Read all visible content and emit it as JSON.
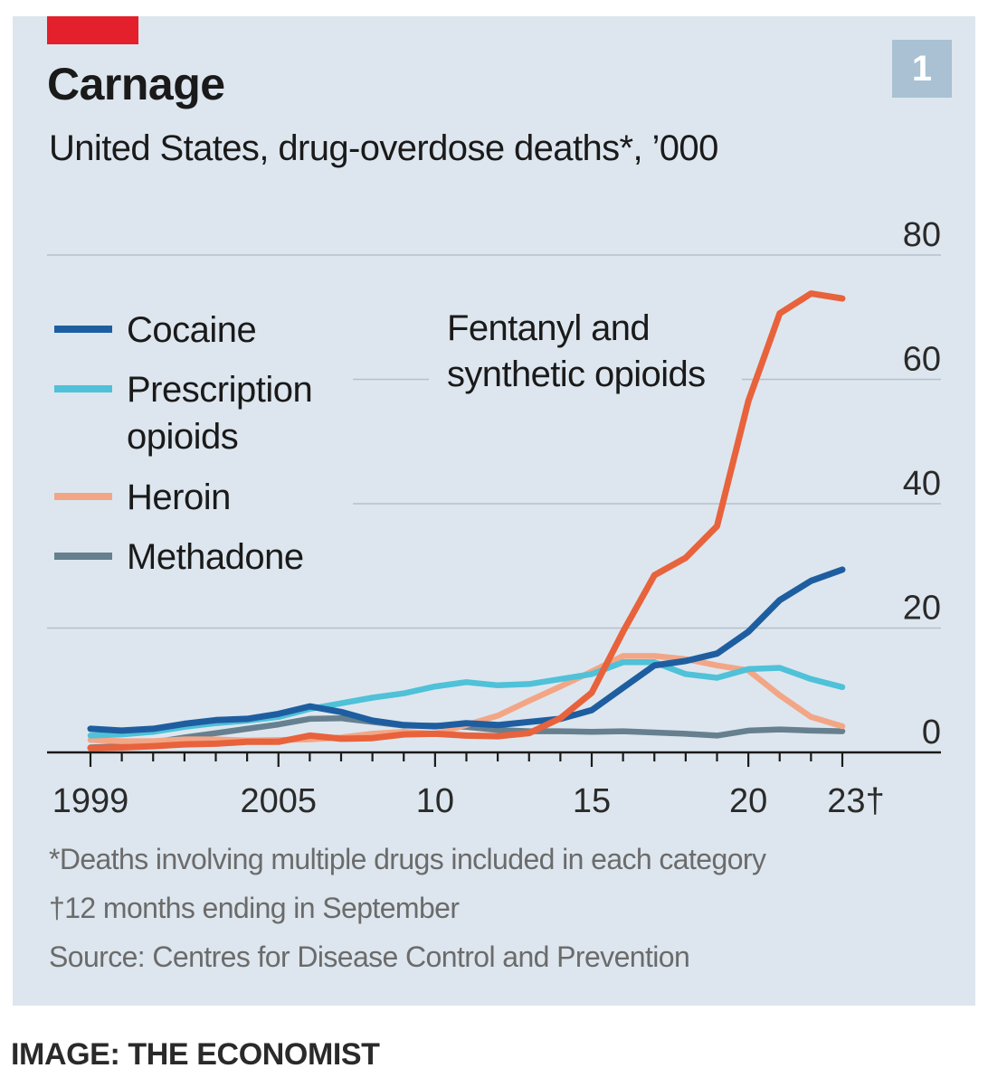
{
  "header": {
    "title": "Carnage",
    "subtitle": "United States, drug-overdose deaths*, ’000",
    "badge": "1"
  },
  "footnotes": {
    "note1": "*Deaths involving multiple drugs included in each category",
    "note2": "†12 months ending in September",
    "source": "Source: Centres for Disease Control and Prevention"
  },
  "credit": "IMAGE: THE ECONOMIST",
  "colors": {
    "panel": "#dde6ee",
    "accent_red": "#e3202b",
    "badge": "#a9c1d2",
    "gridline": "#b4c0cb",
    "axis": "#1a1a1a"
  },
  "chart_data": {
    "type": "line",
    "title": "Carnage",
    "subtitle": "United States, drug-overdose deaths*, ’000",
    "xlabel": "",
    "ylabel": "",
    "xlim": [
      1999,
      2023
    ],
    "ylim": [
      0,
      80
    ],
    "yticks": [
      0,
      20,
      40,
      60,
      80
    ],
    "ytick_side": "right",
    "xtick_labels": [
      {
        "x": 1999,
        "label": "1999"
      },
      {
        "x": 2005,
        "label": "2005"
      },
      {
        "x": 2010,
        "label": "10"
      },
      {
        "x": 2015,
        "label": "15"
      },
      {
        "x": 2020,
        "label": "20"
      },
      {
        "x": 2023,
        "label": "23†"
      }
    ],
    "grid": true,
    "x": [
      1999,
      2000,
      2001,
      2002,
      2003,
      2004,
      2005,
      2006,
      2007,
      2008,
      2009,
      2010,
      2011,
      2012,
      2013,
      2014,
      2015,
      2016,
      2017,
      2018,
      2019,
      2020,
      2021,
      2022,
      2023
    ],
    "series": [
      {
        "name": "Methadone",
        "color": "#66808f",
        "values": [
          0.8,
          1.0,
          1.6,
          2.4,
          3.1,
          3.8,
          4.5,
          5.4,
          5.5,
          4.9,
          4.3,
          4.3,
          4.1,
          3.6,
          3.4,
          3.4,
          3.3,
          3.4,
          3.2,
          3.0,
          2.7,
          3.5,
          3.7,
          3.5,
          3.4
        ]
      },
      {
        "name": "Heroin",
        "color": "#f3a686",
        "values": [
          2.0,
          1.8,
          1.8,
          2.1,
          2.1,
          1.9,
          2.0,
          2.1,
          2.4,
          3.0,
          3.3,
          3.0,
          4.4,
          5.9,
          8.3,
          10.6,
          13.0,
          15.5,
          15.5,
          15.0,
          14.0,
          13.2,
          9.2,
          5.7,
          4.2
        ]
      },
      {
        "name": "Prescription opioids",
        "color": "#4fc1d8",
        "values": [
          2.7,
          2.9,
          3.3,
          4.1,
          4.7,
          5.1,
          5.7,
          7.0,
          7.9,
          8.8,
          9.5,
          10.6,
          11.3,
          10.8,
          11.0,
          11.8,
          12.6,
          14.5,
          14.5,
          12.6,
          12.0,
          13.4,
          13.6,
          11.8,
          10.5
        ]
      },
      {
        "name": "Cocaine",
        "color": "#1e5ea0",
        "values": [
          3.8,
          3.5,
          3.8,
          4.6,
          5.2,
          5.4,
          6.2,
          7.4,
          6.5,
          5.1,
          4.4,
          4.2,
          4.7,
          4.4,
          4.9,
          5.4,
          6.8,
          10.4,
          14.0,
          14.7,
          15.9,
          19.4,
          24.5,
          27.6,
          29.4
        ]
      },
      {
        "name": "Fentanyl and synthetic opioids",
        "color": "#e8623c",
        "values": [
          0.7,
          0.8,
          1.0,
          1.3,
          1.4,
          1.7,
          1.7,
          2.7,
          2.2,
          2.3,
          2.9,
          3.0,
          2.7,
          2.6,
          3.1,
          5.5,
          9.6,
          19.4,
          28.5,
          31.3,
          36.4,
          56.5,
          70.6,
          73.8,
          73.0
        ]
      }
    ],
    "legend": {
      "placement": "left",
      "items": [
        "Cocaine",
        "Prescription opioids",
        "Heroin",
        "Methadone"
      ],
      "item_lines": [
        [
          "Cocaine"
        ],
        [
          "Prescription",
          "opioids"
        ],
        [
          "Heroin"
        ],
        [
          "Methadone"
        ]
      ]
    },
    "annotation": {
      "series": "Fentanyl and synthetic opioids",
      "lines": [
        "Fentanyl and",
        "synthetic opioids"
      ]
    }
  }
}
